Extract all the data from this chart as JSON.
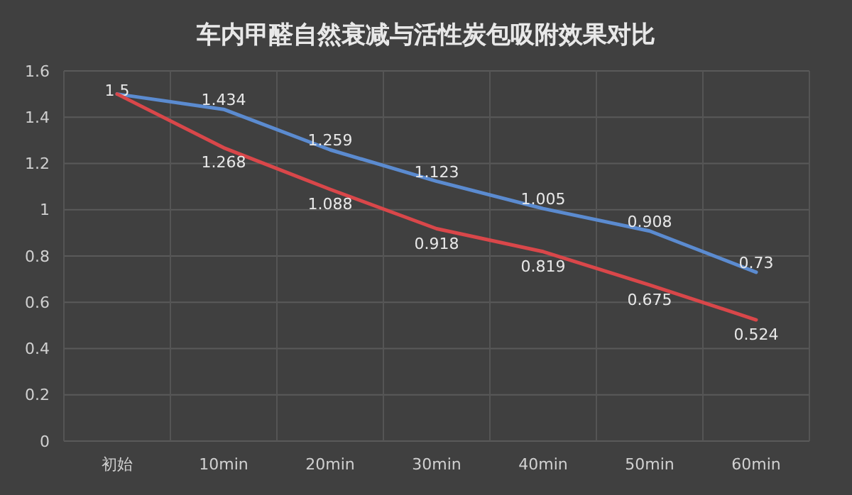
{
  "chart_data": {
    "type": "line",
    "title": "车内甲醛自然衰减与活性炭包吸附效果对比",
    "categories": [
      "初始",
      "10min",
      "20min",
      "30min",
      "40min",
      "50min",
      "60min"
    ],
    "series": [
      {
        "color": "#5b8bd0",
        "values": [
          1.5,
          1.434,
          1.259,
          1.123,
          1.005,
          0.908,
          0.73
        ],
        "value_labels": [
          "1.5",
          "1.434",
          "1.259",
          "1.123",
          "1.005",
          "0.908",
          "0.73"
        ]
      },
      {
        "color": "#d9474a",
        "values": [
          1.5,
          1.268,
          1.088,
          0.918,
          0.819,
          0.675,
          0.524
        ],
        "value_labels": [
          null,
          "1.268",
          "1.088",
          "0.918",
          "0.819",
          "0.675",
          "0.524"
        ]
      }
    ],
    "ylim": [
      0,
      1.6
    ],
    "yticks": [
      0,
      0.2,
      0.4,
      0.6,
      0.8,
      1,
      1.2,
      1.4,
      1.6
    ],
    "grid": true,
    "marker": "none",
    "line_style": "solid"
  }
}
